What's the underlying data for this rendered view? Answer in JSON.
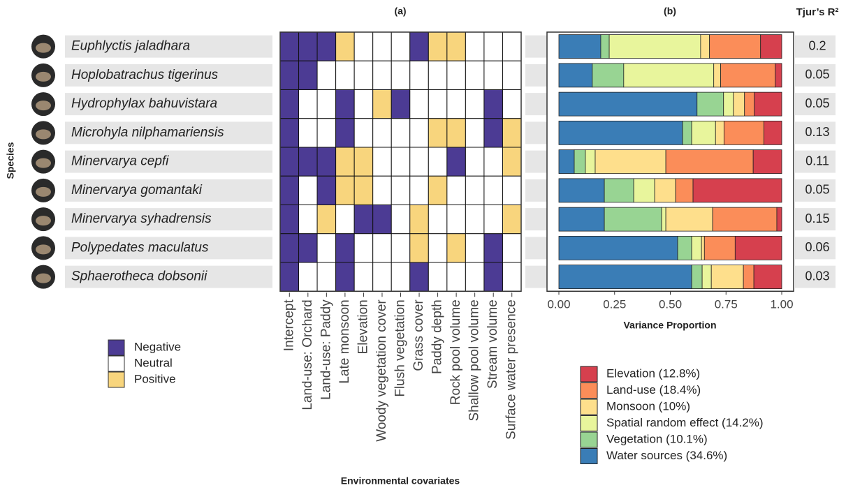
{
  "chart_data": [
    {
      "type": "heatmap",
      "title": "(a)",
      "x_label": "Environmental covariates",
      "y_label": "Species",
      "x_categories": [
        "Intercept",
        "Land-use: Orchard",
        "Land-use: Paddy",
        "Late monsoon",
        "Elevation",
        "Woody vegetation cover",
        "Flush vegetation",
        "Grass cover",
        "Paddy depth",
        "Rock pool volume",
        "Shallow pool volume",
        "Stream volume",
        "Surface water presence"
      ],
      "y_categories": [
        "Euphlyctis jaladhara",
        "Hoplobatrachus tigerinus",
        "Hydrophylax bahuvistara",
        "Microhyla nilphamariensis",
        "Minervarya cepfi",
        "Minervarya gomantaki",
        "Minervarya syhadrensis",
        "Polypedates maculatus",
        "Sphaerotheca dobsonii"
      ],
      "values": [
        [
          -1,
          -1,
          -1,
          1,
          0,
          0,
          0,
          -1,
          1,
          1,
          0,
          0,
          0
        ],
        [
          -1,
          -1,
          0,
          0,
          0,
          0,
          0,
          0,
          0,
          0,
          0,
          0,
          0
        ],
        [
          -1,
          0,
          0,
          -1,
          0,
          1,
          -1,
          0,
          0,
          0,
          0,
          -1,
          0
        ],
        [
          -1,
          0,
          0,
          -1,
          0,
          0,
          0,
          0,
          1,
          1,
          0,
          -1,
          1
        ],
        [
          -1,
          -1,
          -1,
          1,
          1,
          0,
          0,
          0,
          0,
          -1,
          0,
          0,
          1
        ],
        [
          -1,
          0,
          -1,
          1,
          1,
          0,
          0,
          0,
          1,
          0,
          0,
          0,
          0
        ],
        [
          -1,
          0,
          1,
          0,
          -1,
          -1,
          0,
          1,
          0,
          0,
          0,
          0,
          1
        ],
        [
          -1,
          -1,
          0,
          -1,
          0,
          0,
          0,
          1,
          0,
          1,
          0,
          -1,
          0
        ],
        [
          -1,
          0,
          0,
          -1,
          0,
          0,
          0,
          -1,
          0,
          0,
          0,
          -1,
          0
        ]
      ],
      "legend": [
        {
          "name": "Negative",
          "value": -1,
          "color": "#4c3b94"
        },
        {
          "name": "Neutral",
          "value": 0,
          "color": "#ffffff"
        },
        {
          "name": "Positive",
          "value": 1,
          "color": "#f8d57d"
        }
      ]
    },
    {
      "type": "stacked_bar",
      "orientation": "horizontal",
      "title": "(b)",
      "x_label": "Variance Proportion",
      "xlim": [
        0,
        1
      ],
      "xticks": [
        {
          "value": 0,
          "label": "0.00"
        },
        {
          "value": 0.25,
          "label": "0.25"
        },
        {
          "value": 0.5,
          "label": "0.50"
        },
        {
          "value": 0.75,
          "label": "0.75"
        },
        {
          "value": 1,
          "label": "1.00"
        }
      ],
      "series": [
        {
          "name": "Water sources (34.6%)",
          "color": "#3a7db6",
          "values": [
            0.188,
            0.15,
            0.62,
            0.555,
            0.069,
            0.204,
            0.204,
            0.533,
            0.596
          ]
        },
        {
          "name": "Vegetation (10.1%)",
          "color": "#98d493",
          "values": [
            0.038,
            0.141,
            0.119,
            0.041,
            0.05,
            0.132,
            0.257,
            0.063,
            0.047
          ]
        },
        {
          "name": "Spatial random effect (14.2%)",
          "color": "#e8f59c",
          "values": [
            0.41,
            0.404,
            0.044,
            0.107,
            0.044,
            0.094,
            0.019,
            0.044,
            0.041
          ]
        },
        {
          "name": "Monsoon (10%)",
          "color": "#fedf8c",
          "values": [
            0.04,
            0.031,
            0.05,
            0.038,
            0.317,
            0.094,
            0.21,
            0.013,
            0.144
          ]
        },
        {
          "name": "Land-use (18.4%)",
          "color": "#fb8d59",
          "values": [
            0.229,
            0.245,
            0.044,
            0.179,
            0.392,
            0.078,
            0.288,
            0.138,
            0.047
          ]
        },
        {
          "name": "Elevation (12.8%)",
          "color": "#d6404e",
          "values": [
            0.095,
            0.029,
            0.123,
            0.08,
            0.128,
            0.398,
            0.022,
            0.209,
            0.125
          ]
        }
      ],
      "r2_title": "Tjur’s R²",
      "r2_values": [
        0.2,
        0.05,
        0.05,
        0.13,
        0.11,
        0.05,
        0.15,
        0.06,
        0.03
      ]
    }
  ]
}
